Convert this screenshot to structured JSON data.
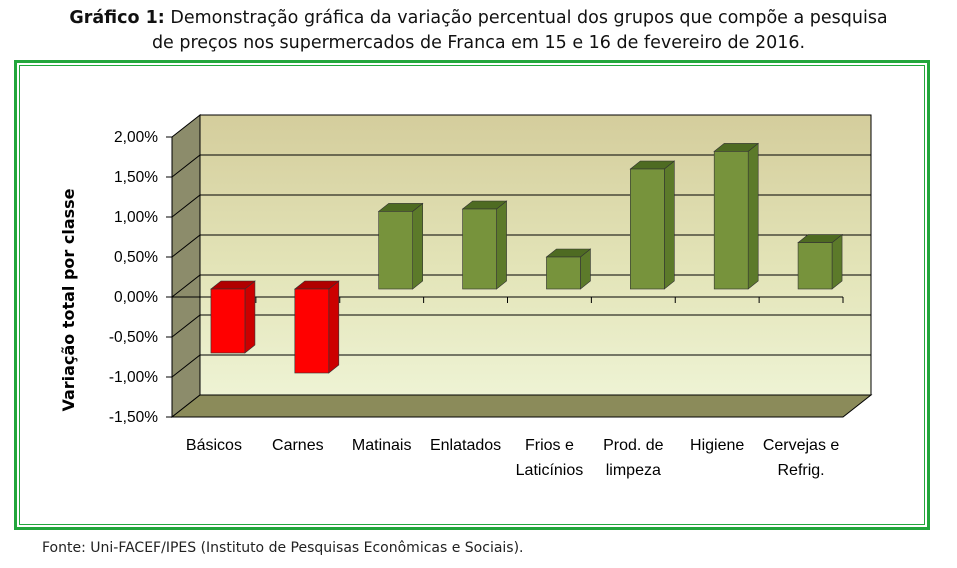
{
  "title": {
    "prefix": "Gráfico 1:",
    "line1": " Demonstração gráfica da variação percentual dos grupos que compõe a pesquisa",
    "line2": "de preços nos supermercados de Franca em 15 e 16 de fevereiro de 2016."
  },
  "source": "Fonte: Uni-FACEF/IPES (Instituto de Pesquisas Econômicas e Sociais).",
  "chart_data": {
    "type": "bar",
    "ylabel": "Variação total por classe",
    "ylim": [
      -1.5,
      2.0
    ],
    "yticks": [
      "2,00%",
      "1,50%",
      "1,00%",
      "0,50%",
      "0,00%",
      "-0,50%",
      "-1,00%",
      "-1,50%"
    ],
    "categories": [
      [
        "Básicos"
      ],
      [
        "Carnes"
      ],
      [
        "Matinais"
      ],
      [
        "Enlatados"
      ],
      [
        "Frios e",
        "Laticínios"
      ],
      [
        "Prod. de",
        "limpeza"
      ],
      [
        "Higiene"
      ],
      [
        "Cervejas e",
        "Refrig."
      ]
    ],
    "values": [
      -0.8,
      -1.05,
      0.97,
      1.0,
      0.4,
      1.5,
      1.72,
      0.58
    ],
    "colors": {
      "positive": "#77933c",
      "negative": "#ff0000",
      "wall_top": "#d6cfa0",
      "wall_bottom": "#eef2cf",
      "frame_border": "#22a63c"
    },
    "grid": true
  }
}
